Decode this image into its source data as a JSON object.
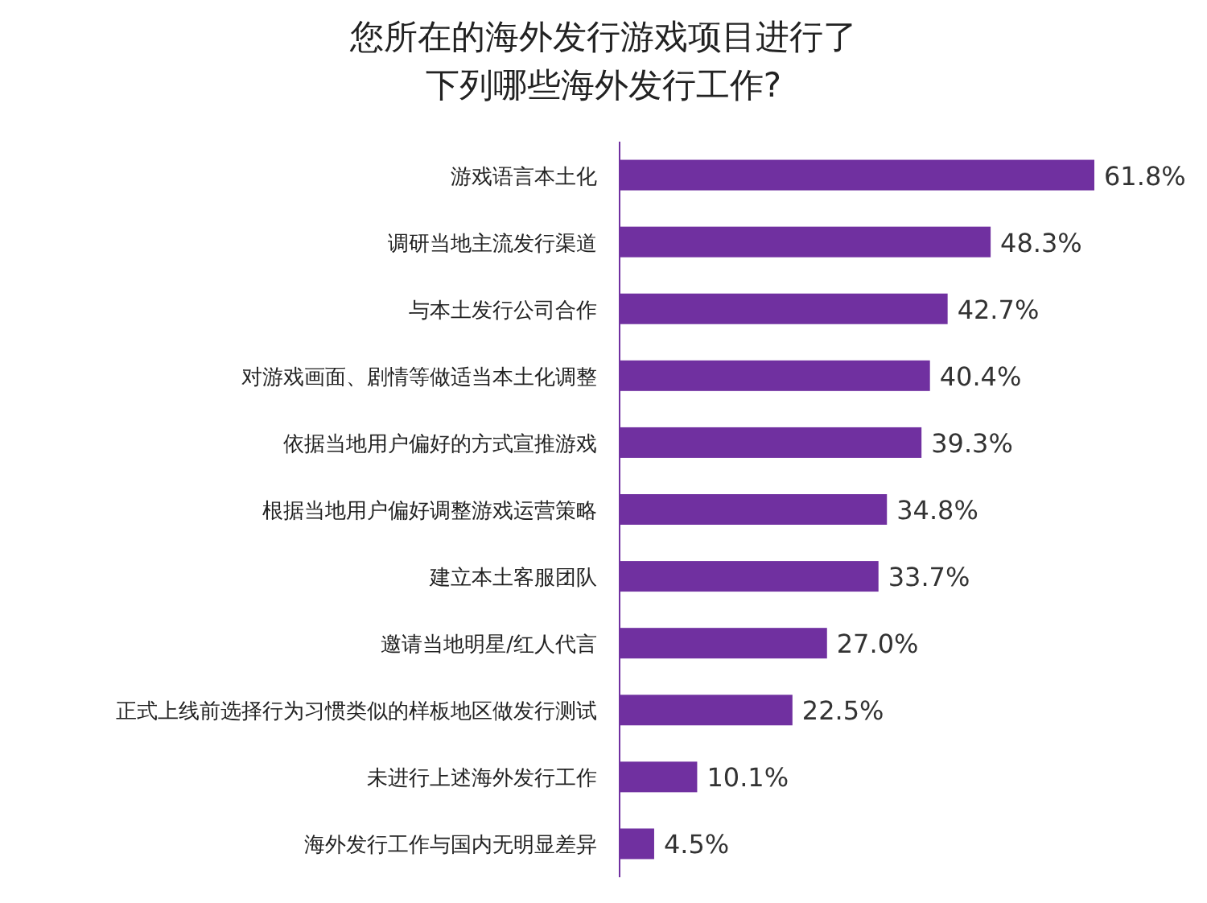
{
  "chart_data": {
    "type": "bar",
    "orientation": "horizontal",
    "title": "您所在的海外发行游戏项目进行了下列哪些海外发行工作?",
    "categories": [
      "游戏语言本土化",
      "调研当地主流发行渠道",
      "与本土发行公司合作",
      "对游戏画面、剧情等做适当本土化调整",
      "依据当地用户偏好的方式宣推游戏",
      "根据当地用户偏好调整游戏运营策略",
      "建立本土客服团队",
      "邀请当地明星/红人代言",
      "正式上线前选择行为习惯类似的样板地区做发行测试",
      "未进行上述海外发行工作",
      "海外发行工作与国内无明显差异"
    ],
    "values": [
      61.8,
      48.3,
      42.7,
      40.4,
      39.3,
      34.8,
      33.7,
      27.0,
      22.5,
      10.1,
      4.5
    ],
    "value_labels": [
      "61.8%",
      "48.3%",
      "42.7%",
      "40.4%",
      "39.3%",
      "34.8%",
      "33.7%",
      "27.0%",
      "22.5%",
      "10.1%",
      "4.5%"
    ],
    "color": "#7030a0"
  }
}
